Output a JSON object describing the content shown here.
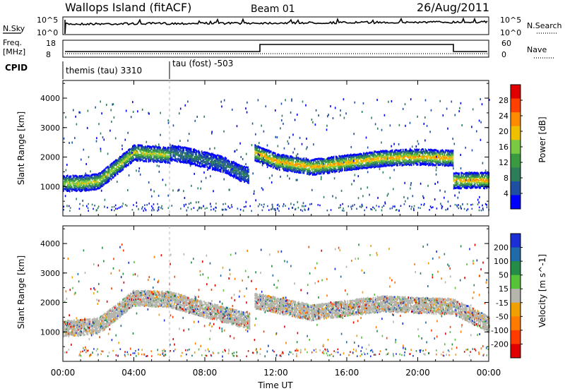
{
  "header": {
    "site": "Wallops Island (fitACF)",
    "beam": "Beam 01",
    "date": "26/Aug/2011"
  },
  "noise_panel": {
    "left_label": "N.Sky",
    "right_label": "N.Search",
    "tick_top": "10^5",
    "tick_bottom": "10^0"
  },
  "freq_panel": {
    "label_top": "Freq.",
    "label_unit": "[MHz]",
    "left_ticks": [
      "18",
      "8"
    ],
    "right_ticks": [
      "60",
      "0"
    ],
    "right_label": "Nave"
  },
  "cpid_panel": {
    "label": "CPID",
    "mode1": "themis (tau) 3310",
    "mode2": "tau (fost) -503"
  },
  "colors": {
    "power_scale": [
      "#0000ff",
      "#1f4fa0",
      "#2e7d5a",
      "#3a9a40",
      "#7ac943",
      "#f0c000",
      "#ff8c00",
      "#ff4000",
      "#e00000"
    ],
    "velocity_scale": [
      "#1c2fd4",
      "#1f6aa8",
      "#238c46",
      "#55c23a",
      "#b5b5ad",
      "#f0a000",
      "#ff7b00",
      "#ff3c00",
      "#e00000"
    ]
  },
  "chart_data": [
    {
      "type": "heatmap",
      "name": "power",
      "ylabel": "Slant Range [km]",
      "yticks": [
        "1000",
        "2000",
        "3000",
        "4000"
      ],
      "ylim": [
        0,
        4600
      ],
      "xlim": [
        0,
        24
      ],
      "colorbar": {
        "label": "Power [dB]",
        "ticks": [
          "4",
          "8",
          "12",
          "16",
          "20",
          "24",
          "28"
        ],
        "range": [
          0,
          32
        ]
      },
      "bands": [
        {
          "range_km": [
            [
              0,
              1150
            ],
            [
              1,
              1150
            ],
            [
              2,
              1220
            ],
            [
              3,
              1700
            ],
            [
              4,
              2200
            ],
            [
              5,
              2150
            ],
            [
              6,
              2100
            ]
          ],
          "value_db": 20
        },
        {
          "range_km": [
            [
              6,
              2200
            ],
            [
              7,
              2100
            ],
            [
              8,
              1950
            ],
            [
              9,
              1800
            ],
            [
              10,
              1500
            ],
            [
              10.5,
              1400
            ]
          ],
          "value_db": 8
        },
        {
          "range_km": [
            [
              10.8,
              2200
            ],
            [
              12,
              1900
            ],
            [
              14,
              1700
            ],
            [
              16,
              1850
            ],
            [
              18,
              2000
            ],
            [
              20,
              2050
            ],
            [
              22,
              2000
            ]
          ],
          "value_db": 24
        },
        {
          "range_km": [
            [
              22,
              1250
            ],
            [
              24,
              1250
            ]
          ],
          "value_db": 22
        }
      ]
    },
    {
      "type": "heatmap",
      "name": "velocity",
      "ylabel": "Slant Range [km]",
      "yticks": [
        "1000",
        "2000",
        "3000",
        "4000"
      ],
      "ylim": [
        0,
        4600
      ],
      "xlim": [
        0,
        24
      ],
      "colorbar": {
        "label": "Velocity [m s^-1]",
        "ticks": [
          "200",
          "100",
          "50",
          "15",
          "-15",
          "-50",
          "-100",
          "-200"
        ],
        "range": [
          -250,
          250
        ]
      },
      "bands": [
        {
          "range_km": [
            [
              0,
              1150
            ],
            [
              2,
              1250
            ],
            [
              4,
              2200
            ],
            [
              6,
              2150
            ],
            [
              8,
              1800
            ],
            [
              10.5,
              1400
            ]
          ],
          "value_ms": 0
        },
        {
          "range_km": [
            [
              10.8,
              2100
            ],
            [
              14,
              1700
            ],
            [
              18,
              2000
            ],
            [
              22,
              1900
            ],
            [
              24,
              1300
            ]
          ],
          "value_ms": 0
        }
      ]
    }
  ],
  "xaxis": {
    "ticks": [
      "00:00",
      "04:00",
      "08:00",
      "12:00",
      "16:00",
      "20:00",
      "00:00"
    ],
    "label": "Time UT"
  }
}
